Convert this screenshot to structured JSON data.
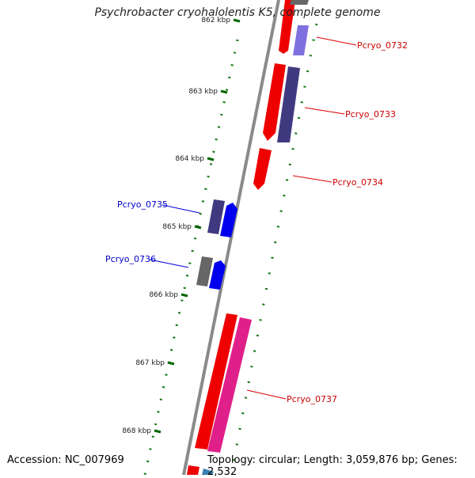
{
  "title": "Psychrobacter cryohalolentis K5, complete genome",
  "footer": {
    "accession": "Accession: NC_007969",
    "summary": "Topology: circular; Length: 3,059,876 bp; Genes: 2,532"
  },
  "ticks": [
    {
      "label": "862 kbp"
    },
    {
      "label": "863 kbp"
    },
    {
      "label": "864 kbp"
    },
    {
      "label": "865 kbp"
    },
    {
      "label": "866 kbp"
    },
    {
      "label": "867 kbp"
    },
    {
      "label": "868 kbp"
    }
  ],
  "genes": [
    {
      "id": "Pcryo_0732",
      "label": "Pcryo_0732",
      "strand": "forward",
      "label_color": "#cc0000"
    },
    {
      "id": "Pcryo_0733",
      "label": "Pcryo_0733",
      "strand": "forward",
      "label_color": "#cc0000"
    },
    {
      "id": "Pcryo_0734",
      "label": "Pcryo_0734",
      "strand": "forward",
      "label_color": "#cc0000"
    },
    {
      "id": "Pcryo_0735",
      "label": "Pcryo_0735",
      "strand": "reverse",
      "label_color": "#0000cc"
    },
    {
      "id": "Pcryo_0736",
      "label": "Pcryo_0736",
      "strand": "reverse",
      "label_color": "#0000cc"
    },
    {
      "id": "Pcryo_0737",
      "label": "Pcryo_0737",
      "strand": "forward",
      "label_color": "#cc0000"
    }
  ],
  "colors": {
    "backbone": "#888888",
    "forward_cds": "#ee0000",
    "reverse_cds": "#0000ee",
    "cog_purple": "#3f3a80",
    "cog_lavender": "#7f70e0",
    "cog_gray": "#666666",
    "cog_pink": "#e0208a",
    "cog_teal": "#3a80b0",
    "tick": "#006600"
  }
}
